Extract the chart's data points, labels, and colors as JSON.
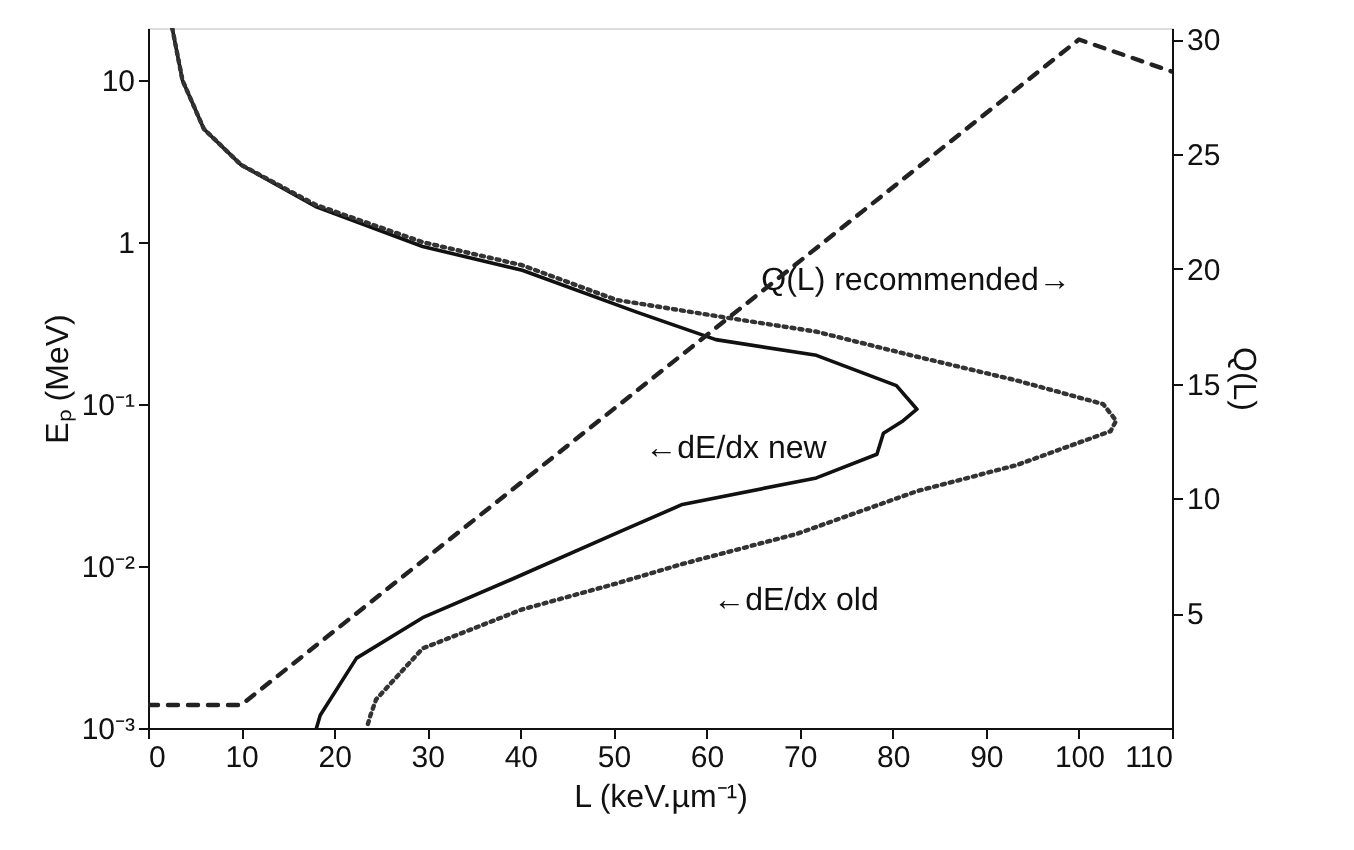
{
  "chart_data": {
    "type": "line",
    "xlabel": "L (keV.µm⁻¹)",
    "ylabel": "Eₚ (MeV)",
    "y2label": "Q(L)",
    "xlim": [
      0,
      110
    ],
    "xticks": [
      0,
      10,
      20,
      30,
      40,
      50,
      60,
      70,
      80,
      90,
      100,
      110
    ],
    "ylim": [
      0.001,
      21
    ],
    "yticks": [
      {
        "value": 10,
        "label": "10"
      },
      {
        "value": 1,
        "label": "1"
      },
      {
        "value": 0.1,
        "label": "10⁻¹"
      },
      {
        "value": 0.01,
        "label": "10⁻²"
      },
      {
        "value": 0.001,
        "label": "10⁻³"
      }
    ],
    "y2lim": [
      0,
      30.5
    ],
    "y2ticks": [
      5,
      10,
      15,
      20,
      25,
      30
    ],
    "log": "y",
    "grid": false,
    "marker": "none",
    "series": [
      {
        "color": "#111111",
        "line_style": "solid",
        "x": [
          2.6,
          3.7,
          6,
          10,
          18,
          29.5,
          40.2,
          52.5,
          61,
          71.8,
          80.4,
          82.6,
          81,
          79,
          78.3,
          71.8,
          57.4,
          51,
          38.9,
          29.5,
          22.4,
          18.5,
          18.1
        ],
        "values": [
          21,
          10,
          5,
          3,
          1.66,
          0.94,
          0.67,
          0.37,
          0.25,
          0.2,
          0.13,
          0.093,
          0.078,
          0.066,
          0.049,
          0.035,
          0.024,
          0.0166,
          0.0082,
          0.0048,
          0.0027,
          0.0012,
          0.001
        ]
      },
      {
        "color": "#333333",
        "line_style": "dotted",
        "x": [
          2.6,
          3.7,
          6,
          10,
          18,
          29.5,
          40.2,
          50.3,
          61,
          71.8,
          82,
          93.3,
          102.6,
          104,
          103.4,
          93.3,
          82.6,
          69.7,
          57.4,
          50.3,
          40.2,
          29.5,
          24.5,
          23.9,
          23.5
        ],
        "values": [
          21,
          10,
          5,
          3,
          1.7,
          1.0,
          0.72,
          0.44,
          0.35,
          0.28,
          0.2,
          0.14,
          0.1,
          0.079,
          0.068,
          0.042,
          0.029,
          0.0158,
          0.0103,
          0.0078,
          0.0054,
          0.0031,
          0.0015,
          0.0012,
          0.001
        ]
      },
      {
        "color": "#222222",
        "line_style": "dashed",
        "axis": "y2",
        "x": [
          0,
          10,
          100,
          105,
          110
        ],
        "values": [
          1,
          1,
          30,
          29.3,
          28.6
        ]
      }
    ],
    "annotations": [
      "Q(L) recommended→",
      "←dE/dx new",
      "←dE/dx old"
    ]
  }
}
